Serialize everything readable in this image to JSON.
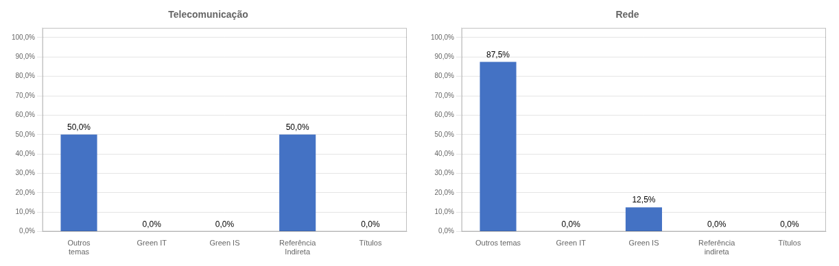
{
  "chart_data": [
    {
      "type": "bar",
      "title": "Telecomunicação",
      "categories": [
        "Outros\ntemas",
        "Green IT",
        "Green IS",
        "Referência\nIndireta",
        "Títulos"
      ],
      "values": [
        50.0,
        0.0,
        0.0,
        50.0,
        0.0
      ],
      "value_labels": [
        "50,0%",
        "0,0%",
        "0,0%",
        "50,0%",
        "0,0%"
      ],
      "data_labels": true,
      "color": "#4472C4",
      "ylim": [
        0,
        105
      ],
      "yticks": [
        {
          "value": 0,
          "label": "0,0%"
        },
        {
          "value": 10,
          "label": "10,0%"
        },
        {
          "value": 20,
          "label": "20,0%"
        },
        {
          "value": 30,
          "label": "30,0%"
        },
        {
          "value": 40,
          "label": "40,0%"
        },
        {
          "value": 50,
          "label": "50,0%"
        },
        {
          "value": 60,
          "label": "60,0%"
        },
        {
          "value": 70,
          "label": "70,0%"
        },
        {
          "value": 80,
          "label": "80,0%"
        },
        {
          "value": 90,
          "label": "90,0%"
        },
        {
          "value": 100,
          "label": "100,0%"
        }
      ],
      "grid": true
    },
    {
      "type": "bar",
      "title": "Rede",
      "categories": [
        "Outros temas",
        "Green IT",
        "Green IS",
        "Referência\nindireta",
        "Títulos"
      ],
      "values": [
        87.5,
        0.0,
        12.5,
        0.0,
        0.0
      ],
      "value_labels": [
        "87,5%",
        "0,0%",
        "12,5%",
        "0,0%",
        "0,0%"
      ],
      "data_labels": true,
      "color": "#4472C4",
      "ylim": [
        0,
        105
      ],
      "yticks": [
        {
          "value": 0,
          "label": "0,0%"
        },
        {
          "value": 10,
          "label": "10,0%"
        },
        {
          "value": 20,
          "label": "20,0%"
        },
        {
          "value": 30,
          "label": "30,0%"
        },
        {
          "value": 40,
          "label": "40,0%"
        },
        {
          "value": 50,
          "label": "50,0%"
        },
        {
          "value": 60,
          "label": "60,0%"
        },
        {
          "value": 70,
          "label": "70,0%"
        },
        {
          "value": 80,
          "label": "80,0%"
        },
        {
          "value": 90,
          "label": "90,0%"
        },
        {
          "value": 100,
          "label": "100,0%"
        }
      ],
      "grid": true
    }
  ]
}
